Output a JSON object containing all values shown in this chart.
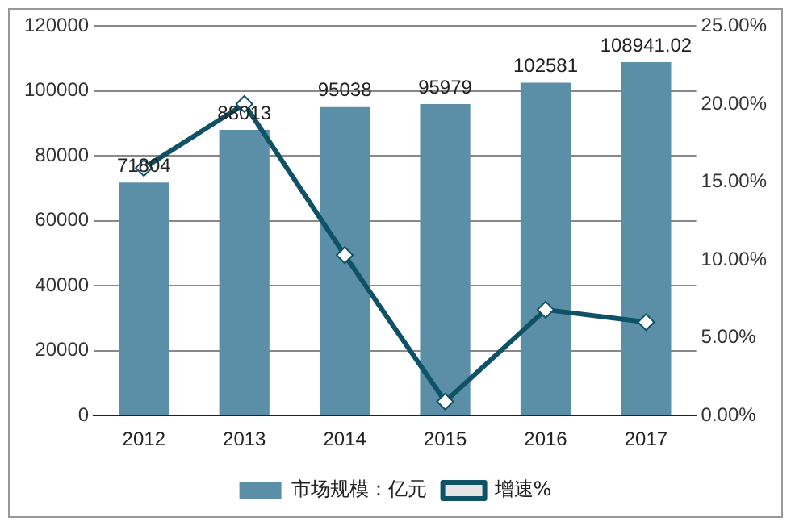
{
  "chart_data": {
    "type": "bar",
    "categories": [
      "2012",
      "2013",
      "2014",
      "2015",
      "2016",
      "2017"
    ],
    "series": [
      {
        "name": "市场规模：亿元",
        "color": "#5b8fa8",
        "values": [
          71804,
          88013,
          95038,
          95979,
          102581,
          108941.02
        ],
        "value_labels": [
          "71804",
          "88013",
          "95038",
          "95979",
          "102581",
          "108941.02"
        ]
      },
      {
        "name": "增速%",
        "type": "line",
        "axis": "y2",
        "color": "#0f5268",
        "marker": "diamond",
        "values": [
          15.9,
          20.0,
          10.3,
          0.9,
          6.8,
          6.0
        ]
      }
    ],
    "ylim": [
      0,
      120000
    ],
    "yticks": [
      0,
      20000,
      40000,
      60000,
      80000,
      100000,
      120000
    ],
    "y2lim": [
      0,
      25
    ],
    "y2ticks": [
      {
        "value": 0,
        "label": "0.00%"
      },
      {
        "value": 5,
        "label": "5.00%"
      },
      {
        "value": 10,
        "label": "10.00%"
      },
      {
        "value": 15,
        "label": "15.00%"
      },
      {
        "value": 20,
        "label": "20.00%"
      },
      {
        "value": 25,
        "label": "25.00%"
      }
    ],
    "grid": "y",
    "legend": "bottom"
  }
}
